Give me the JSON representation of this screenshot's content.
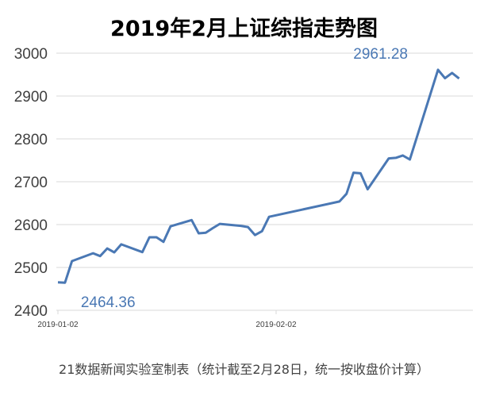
{
  "chart_data": {
    "type": "line",
    "title": "2019年2月上证综指走势图",
    "source_note": "21数据新闻实验室制表（统计截至2月28日，统一按收盘价计算）",
    "xlabel": "",
    "ylabel": "",
    "ylim": [
      2400,
      3000
    ],
    "yticks": [
      "2400",
      "2500",
      "2600",
      "2700",
      "2800",
      "2900",
      "3000"
    ],
    "xticks": [
      "2019-01-02",
      "2019-02-02"
    ],
    "grid": "horizontal",
    "line_color": "#4a78b4",
    "annotations": [
      {
        "date": "2019-01-03",
        "label": "2464.36"
      },
      {
        "date": "2019-02-25",
        "label": "2961.28"
      }
    ],
    "x": [
      "2019-01-02",
      "2019-01-03",
      "2019-01-04",
      "2019-01-07",
      "2019-01-08",
      "2019-01-09",
      "2019-01-10",
      "2019-01-11",
      "2019-01-14",
      "2019-01-15",
      "2019-01-16",
      "2019-01-17",
      "2019-01-18",
      "2019-01-21",
      "2019-01-22",
      "2019-01-23",
      "2019-01-24",
      "2019-01-25",
      "2019-01-28",
      "2019-01-29",
      "2019-01-30",
      "2019-01-31",
      "2019-02-01",
      "2019-02-11",
      "2019-02-12",
      "2019-02-13",
      "2019-02-14",
      "2019-02-15",
      "2019-02-18",
      "2019-02-19",
      "2019-02-20",
      "2019-02-21",
      "2019-02-22",
      "2019-02-25",
      "2019-02-26",
      "2019-02-27",
      "2019-02-28"
    ],
    "y": [
      2465.29,
      2464.36,
      2514.87,
      2533.09,
      2526.46,
      2544.34,
      2535.1,
      2553.83,
      2535.77,
      2570.34,
      2570.42,
      2559.64,
      2596.01,
      2610.51,
      2579.7,
      2581.0,
      2591.69,
      2601.72,
      2596.98,
      2594.25,
      2575.58,
      2584.57,
      2618.23,
      2653.9,
      2671.89,
      2721.07,
      2719.7,
      2682.39,
      2754.36,
      2755.65,
      2761.22,
      2751.8,
      2804.23,
      2961.28,
      2941.52,
      2953.82,
      2940.95
    ]
  }
}
